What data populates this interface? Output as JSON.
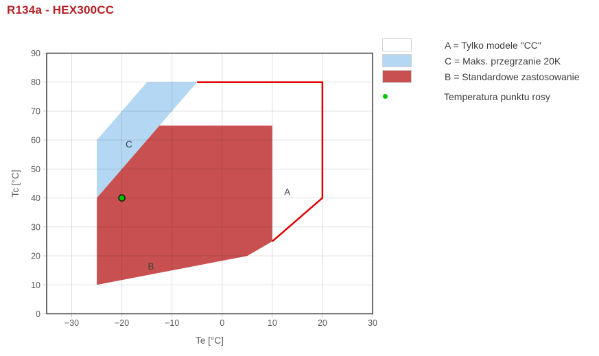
{
  "title": "R134a - HEX300CC",
  "colors": {
    "title": "#b32025",
    "grid": "rgba(0,0,0,0.12)",
    "axis_border": "#3c3c3e",
    "tick_mark": "#cdcdcd",
    "tick_text": "#595959",
    "axis_label_text": "#595959",
    "region_label_text": "#3f3f3f",
    "region_a_outline": "#e00000",
    "region_b_fill": "#c95050",
    "region_c_fill": "#b4d8f3",
    "point_fill": "#00c800",
    "point_stroke": "#1a1a1a"
  },
  "legend": {
    "items": [
      {
        "id": "A",
        "swatch_color": "#ffffff",
        "label": "A = Tylko modele \"CC\""
      },
      {
        "id": "C",
        "swatch_color": "#b4d8f3",
        "label": "C = Maks. przegrzanie 20K"
      },
      {
        "id": "B",
        "swatch_color": "#c95050",
        "label": "B = Standardowe zastosowanie"
      }
    ],
    "point_item": {
      "marker_color": "#00c800",
      "label": "Temperatura punktu rosy"
    }
  },
  "chart_data": {
    "type": "area",
    "title": "R134a - HEX300CC",
    "xlabel": "Te [°C]",
    "ylabel": "Tc [°C]",
    "xlim": [
      -35,
      30
    ],
    "ylim": [
      0,
      90
    ],
    "grid": true,
    "legend_position": "top-right",
    "x_ticks": [
      -30,
      -20,
      -10,
      0,
      10,
      20,
      30
    ],
    "x_tick_labels": [
      "−30",
      "−20",
      "−10",
      "0",
      "10",
      "20",
      "30"
    ],
    "y_ticks": [
      0,
      10,
      20,
      30,
      40,
      50,
      60,
      70,
      80,
      90
    ],
    "y_tick_labels": [
      "0",
      "10",
      "20",
      "30",
      "40",
      "50",
      "60",
      "70",
      "80",
      "90"
    ],
    "regions": [
      {
        "id": "A",
        "name": "Tylko modele \"CC\"",
        "label": "A",
        "label_pos": [
          13,
          42
        ],
        "fill": "#ffffff",
        "outline_color": "#e00000",
        "points": [
          [
            -5,
            80
          ],
          [
            20,
            80
          ],
          [
            20,
            40
          ],
          [
            10,
            25
          ],
          [
            10,
            65
          ],
          [
            -12.5,
            65
          ]
        ],
        "outline_points": [
          [
            -5,
            80
          ],
          [
            20,
            80
          ],
          [
            20,
            40
          ],
          [
            10,
            25
          ]
        ]
      },
      {
        "id": "C",
        "name": "Maks. przegrzanie 20K",
        "label": "C",
        "label_pos": [
          -18.6,
          58.5
        ],
        "fill": "#b4d8f3",
        "points": [
          [
            -25,
            40
          ],
          [
            -25,
            60
          ],
          [
            -15,
            80
          ],
          [
            -5,
            80
          ],
          [
            -12.5,
            65
          ]
        ]
      },
      {
        "id": "B",
        "name": "Standardowe zastosowanie",
        "label": "B",
        "label_pos": [
          -14.2,
          16.3
        ],
        "fill": "#c95050",
        "points": [
          [
            -25,
            40
          ],
          [
            -12.5,
            65
          ],
          [
            10,
            65
          ],
          [
            10,
            25
          ],
          [
            5,
            20
          ],
          [
            -25,
            10
          ]
        ]
      }
    ],
    "point": {
      "x": -20,
      "y": 40,
      "name": "Temperatura punktu rosy"
    }
  }
}
